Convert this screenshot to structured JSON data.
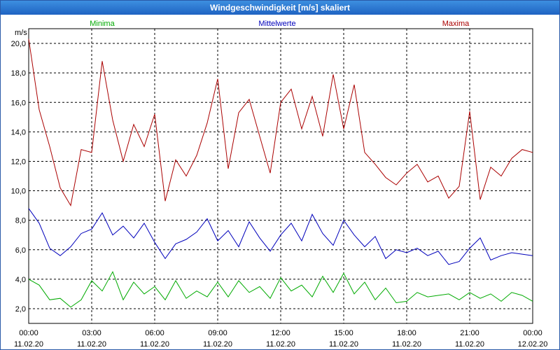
{
  "window": {
    "title": "Windgeschwindigkeit [m/s] skaliert"
  },
  "chart_data": {
    "type": "line",
    "title": "Windgeschwindigkeit [m/s] skaliert",
    "ylabel": "m/s",
    "xlabel": "",
    "ylim": [
      1.0,
      21.0
    ],
    "xlim": [
      0,
      24
    ],
    "y_ticks": [
      {
        "value": 2.0,
        "label": "2,0"
      },
      {
        "value": 4.0,
        "label": "4,0"
      },
      {
        "value": 6.0,
        "label": "6,0"
      },
      {
        "value": 8.0,
        "label": "8,0"
      },
      {
        "value": 10.0,
        "label": "10,0"
      },
      {
        "value": 12.0,
        "label": "12,0"
      },
      {
        "value": 14.0,
        "label": "14,0"
      },
      {
        "value": 16.0,
        "label": "16,0"
      },
      {
        "value": 18.0,
        "label": "18,0"
      },
      {
        "value": 20.0,
        "label": "20,0"
      }
    ],
    "x_ticks": [
      {
        "value": 0,
        "time": "00:00",
        "date": "11.02.20"
      },
      {
        "value": 3,
        "time": "03:00",
        "date": "11.02.20"
      },
      {
        "value": 6,
        "time": "06:00",
        "date": "11.02.20"
      },
      {
        "value": 9,
        "time": "09:00",
        "date": "11.02.20"
      },
      {
        "value": 12,
        "time": "12:00",
        "date": "11.02.20"
      },
      {
        "value": 15,
        "time": "15:00",
        "date": "11.02.20"
      },
      {
        "value": 18,
        "time": "18:00",
        "date": "11.02.20"
      },
      {
        "value": 21,
        "time": "21:00",
        "date": "11.02.20"
      },
      {
        "value": 24,
        "time": "00:00",
        "date": "12.02.20"
      }
    ],
    "grid": true,
    "series": [
      {
        "name": "Minima",
        "color": "#00aa00",
        "x": [
          0,
          0.5,
          1,
          1.5,
          2,
          2.5,
          3,
          3.5,
          4,
          4.5,
          5,
          5.5,
          6,
          6.5,
          7,
          7.5,
          8,
          8.5,
          9,
          9.5,
          10,
          10.5,
          11,
          11.5,
          12,
          12.5,
          13,
          13.5,
          14,
          14.5,
          15,
          15.5,
          16,
          16.5,
          17,
          17.5,
          18,
          18.5,
          19,
          19.5,
          20,
          20.5,
          21,
          21.5,
          22,
          22.5,
          23,
          23.5,
          24
        ],
        "values": [
          4.0,
          3.6,
          2.6,
          2.7,
          2.1,
          2.6,
          3.9,
          3.2,
          4.5,
          2.6,
          3.8,
          3.0,
          3.5,
          2.6,
          3.9,
          2.7,
          3.2,
          2.8,
          3.8,
          2.8,
          3.9,
          3.1,
          3.5,
          2.7,
          4.1,
          3.2,
          3.6,
          2.8,
          4.2,
          3.1,
          4.4,
          3.0,
          3.8,
          2.6,
          3.4,
          2.4,
          2.5,
          3.1,
          2.8,
          2.9,
          3.0,
          2.6,
          3.1,
          2.7,
          3.0,
          2.5,
          3.1,
          2.9,
          2.5
        ]
      },
      {
        "name": "Mittelwerte",
        "color": "#0000bb",
        "x": [
          0,
          0.5,
          1,
          1.5,
          2,
          2.5,
          3,
          3.5,
          4,
          4.5,
          5,
          5.5,
          6,
          6.5,
          7,
          7.5,
          8,
          8.5,
          9,
          9.5,
          10,
          10.5,
          11,
          11.5,
          12,
          12.5,
          13,
          13.5,
          14,
          14.5,
          15,
          15.5,
          16,
          16.5,
          17,
          17.5,
          18,
          18.5,
          19,
          19.5,
          20,
          20.5,
          21,
          21.5,
          22,
          22.5,
          23,
          23.5,
          24
        ],
        "values": [
          8.8,
          7.8,
          6.1,
          5.6,
          6.2,
          7.1,
          7.4,
          8.5,
          7.0,
          7.6,
          6.8,
          7.8,
          6.5,
          5.4,
          6.4,
          6.7,
          7.2,
          8.1,
          6.6,
          7.3,
          6.2,
          7.9,
          6.8,
          5.9,
          7.0,
          7.8,
          6.6,
          8.4,
          7.1,
          6.3,
          8.0,
          7.0,
          6.2,
          6.9,
          5.4,
          6.0,
          5.8,
          6.1,
          5.6,
          5.9,
          5.0,
          5.2,
          6.1,
          6.8,
          5.3,
          5.6,
          5.8,
          5.7,
          5.6
        ]
      },
      {
        "name": "Maxima",
        "color": "#aa0000",
        "x": [
          0,
          0.5,
          1,
          1.5,
          2,
          2.5,
          3,
          3.5,
          4,
          4.5,
          5,
          5.5,
          6,
          6.5,
          7,
          7.5,
          8,
          8.5,
          9,
          9.5,
          10,
          10.5,
          11,
          11.5,
          12,
          12.5,
          13,
          13.5,
          14,
          14.5,
          15,
          15.5,
          16,
          16.5,
          17,
          17.5,
          18,
          18.5,
          19,
          19.5,
          20,
          20.5,
          21,
          21.5,
          22,
          22.5,
          23,
          23.5,
          24
        ],
        "values": [
          20.3,
          15.5,
          13.0,
          10.2,
          9.0,
          12.8,
          12.6,
          18.8,
          14.8,
          12.0,
          14.5,
          13.0,
          15.2,
          9.3,
          12.1,
          11.0,
          12.4,
          14.6,
          17.6,
          11.5,
          15.3,
          16.2,
          13.7,
          11.2,
          16.0,
          16.9,
          14.2,
          16.4,
          13.7,
          17.9,
          14.2,
          17.2,
          12.6,
          11.8,
          10.9,
          10.4,
          11.2,
          11.8,
          10.6,
          11.0,
          9.5,
          10.3,
          15.4,
          9.4,
          11.6,
          11.0,
          12.2,
          12.8,
          12.6
        ]
      }
    ]
  }
}
